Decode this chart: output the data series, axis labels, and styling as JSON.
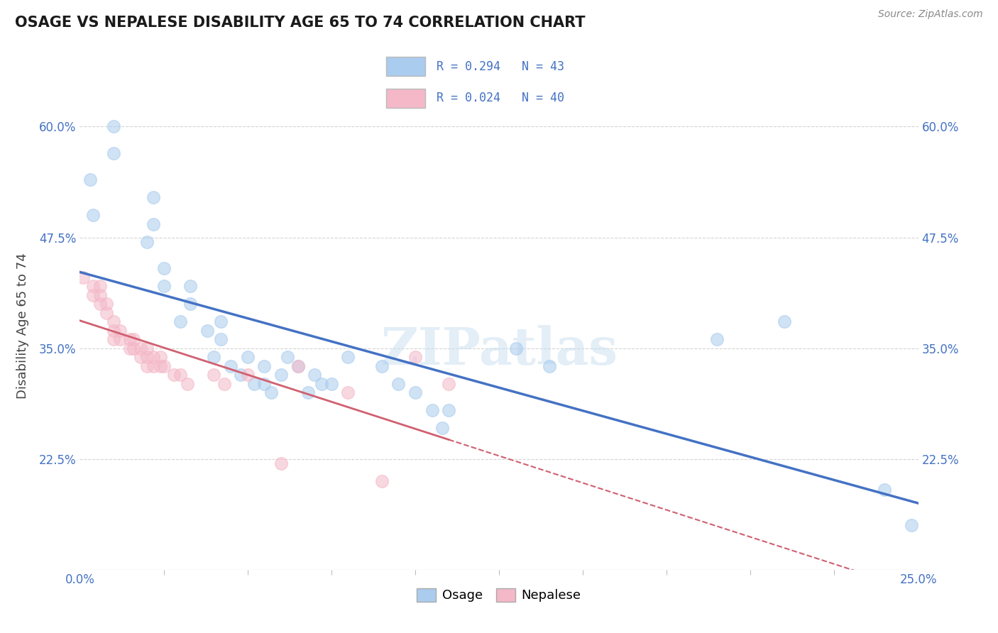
{
  "title": "OSAGE VS NEPALESE DISABILITY AGE 65 TO 74 CORRELATION CHART",
  "source_text": "Source: ZipAtlas.com",
  "ylabel": "Disability Age 65 to 74",
  "xlim": [
    0.0,
    0.25
  ],
  "ylim": [
    0.1,
    0.65
  ],
  "ytick_positions": [
    0.225,
    0.35,
    0.475,
    0.6
  ],
  "yticklabels": [
    "22.5%",
    "35.0%",
    "47.5%",
    "60.0%"
  ],
  "grid_color": "#d0d0d0",
  "background_color": "#ffffff",
  "osage_color": "#aaccee",
  "nepalese_color": "#f4b8c8",
  "osage_line_color": "#4472c4",
  "nepalese_line_color": "#d06070",
  "tick_label_color": "#4472c4",
  "osage_scatter": [
    [
      0.003,
      0.54
    ],
    [
      0.004,
      0.5
    ],
    [
      0.01,
      0.6
    ],
    [
      0.01,
      0.57
    ],
    [
      0.02,
      0.47
    ],
    [
      0.022,
      0.52
    ],
    [
      0.022,
      0.49
    ],
    [
      0.025,
      0.44
    ],
    [
      0.025,
      0.42
    ],
    [
      0.03,
      0.38
    ],
    [
      0.033,
      0.42
    ],
    [
      0.033,
      0.4
    ],
    [
      0.038,
      0.37
    ],
    [
      0.04,
      0.34
    ],
    [
      0.042,
      0.38
    ],
    [
      0.042,
      0.36
    ],
    [
      0.045,
      0.33
    ],
    [
      0.048,
      0.32
    ],
    [
      0.05,
      0.34
    ],
    [
      0.052,
      0.31
    ],
    [
      0.055,
      0.33
    ],
    [
      0.055,
      0.31
    ],
    [
      0.057,
      0.3
    ],
    [
      0.06,
      0.32
    ],
    [
      0.062,
      0.34
    ],
    [
      0.065,
      0.33
    ],
    [
      0.068,
      0.3
    ],
    [
      0.07,
      0.32
    ],
    [
      0.072,
      0.31
    ],
    [
      0.075,
      0.31
    ],
    [
      0.08,
      0.34
    ],
    [
      0.09,
      0.33
    ],
    [
      0.095,
      0.31
    ],
    [
      0.1,
      0.3
    ],
    [
      0.105,
      0.28
    ],
    [
      0.108,
      0.26
    ],
    [
      0.11,
      0.28
    ],
    [
      0.13,
      0.35
    ],
    [
      0.14,
      0.33
    ],
    [
      0.19,
      0.36
    ],
    [
      0.21,
      0.38
    ],
    [
      0.24,
      0.19
    ],
    [
      0.248,
      0.15
    ]
  ],
  "nepalese_scatter": [
    [
      0.001,
      0.43
    ],
    [
      0.004,
      0.42
    ],
    [
      0.004,
      0.41
    ],
    [
      0.006,
      0.42
    ],
    [
      0.006,
      0.41
    ],
    [
      0.006,
      0.4
    ],
    [
      0.008,
      0.4
    ],
    [
      0.008,
      0.39
    ],
    [
      0.01,
      0.38
    ],
    [
      0.01,
      0.37
    ],
    [
      0.01,
      0.36
    ],
    [
      0.012,
      0.37
    ],
    [
      0.012,
      0.36
    ],
    [
      0.015,
      0.36
    ],
    [
      0.015,
      0.35
    ],
    [
      0.016,
      0.36
    ],
    [
      0.016,
      0.35
    ],
    [
      0.018,
      0.35
    ],
    [
      0.018,
      0.34
    ],
    [
      0.02,
      0.35
    ],
    [
      0.02,
      0.34
    ],
    [
      0.02,
      0.33
    ],
    [
      0.022,
      0.34
    ],
    [
      0.022,
      0.33
    ],
    [
      0.024,
      0.34
    ],
    [
      0.024,
      0.33
    ],
    [
      0.025,
      0.33
    ],
    [
      0.028,
      0.32
    ],
    [
      0.03,
      0.32
    ],
    [
      0.032,
      0.31
    ],
    [
      0.04,
      0.32
    ],
    [
      0.043,
      0.31
    ],
    [
      0.05,
      0.32
    ],
    [
      0.06,
      0.22
    ],
    [
      0.065,
      0.33
    ],
    [
      0.08,
      0.3
    ],
    [
      0.09,
      0.2
    ],
    [
      0.1,
      0.34
    ],
    [
      0.11,
      0.31
    ]
  ]
}
